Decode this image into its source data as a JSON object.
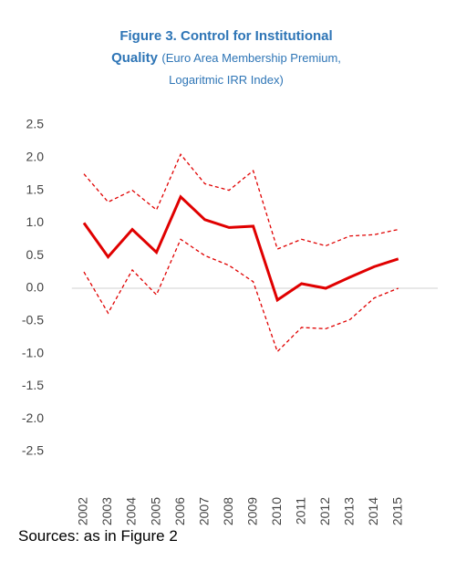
{
  "chart_data": {
    "type": "line",
    "title": "Figure 3. Control for Institutional Quality",
    "subtitle": "(Euro Area Membership Premium, Logaritmic IRR Index)",
    "source": "Sources: as in Figure 2",
    "categories": [
      "2002",
      "2003",
      "2004",
      "2005",
      "2006",
      "2007",
      "2008",
      "2009",
      "2010",
      "2011",
      "2012",
      "2013",
      "2014",
      "2015"
    ],
    "series": [
      {
        "color": "#e00000",
        "dashed": false,
        "values": [
          1.0,
          0.48,
          0.9,
          0.55,
          1.4,
          1.05,
          0.93,
          0.95,
          -0.18,
          0.07,
          0.0,
          0.17,
          0.33,
          0.45
        ]
      },
      {
        "color": "#e00000",
        "dashed": true,
        "values": [
          1.75,
          1.32,
          1.5,
          1.2,
          2.05,
          1.6,
          1.5,
          1.8,
          0.6,
          0.75,
          0.65,
          0.8,
          0.82,
          0.9
        ]
      },
      {
        "color": "#e00000",
        "dashed": true,
        "values": [
          0.25,
          -0.38,
          0.28,
          -0.1,
          0.75,
          0.5,
          0.35,
          0.1,
          -0.97,
          -0.6,
          -0.62,
          -0.48,
          -0.15,
          0.0
        ]
      }
    ],
    "ylim": [
      -2.5,
      2.5
    ],
    "yticks": [
      -2.5,
      {
        "value": -2,
        "label": "-2.0"
      },
      -1.5,
      {
        "value": -1,
        "label": "-1.0"
      },
      -0.5,
      {
        "value": 0,
        "label": "0.0"
      },
      0.5,
      {
        "value": 1,
        "label": "1.0"
      },
      1.5,
      {
        "value": 2,
        "label": "2.0"
      },
      2.5
    ],
    "grid": false
  }
}
